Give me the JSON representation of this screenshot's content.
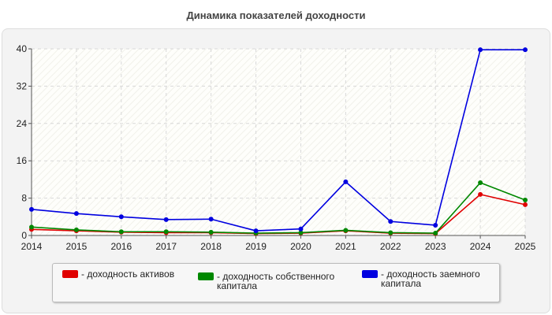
{
  "chart_data": {
    "type": "line",
    "title": "Динамика показателей доходности",
    "x": [
      "2014",
      "2015",
      "2016",
      "2017",
      "2018",
      "2019",
      "2020",
      "2021",
      "2022",
      "2023",
      "2024",
      "2025"
    ],
    "ylim": [
      0,
      40
    ],
    "yticks": [
      "0",
      "8",
      "16",
      "24",
      "32",
      "40"
    ],
    "grid": true,
    "legend_position": "bottom",
    "series": [
      {
        "name": "- доходность активов",
        "color": "#e00000",
        "values": [
          1.3,
          1.0,
          0.7,
          0.6,
          0.6,
          0.4,
          0.5,
          1.0,
          0.5,
          0.4,
          8.8,
          6.6
        ]
      },
      {
        "name": "- доходность собственного\nкапитала",
        "color": "#008800",
        "values": [
          1.8,
          1.2,
          0.8,
          0.8,
          0.7,
          0.5,
          0.6,
          1.1,
          0.6,
          0.5,
          11.3,
          7.6
        ]
      },
      {
        "name": "- доходность заемного\nкапитала",
        "color": "#0000e0",
        "values": [
          5.6,
          4.7,
          4.0,
          3.4,
          3.5,
          1.0,
          1.4,
          11.5,
          3.0,
          2.2,
          39.8,
          39.8
        ]
      }
    ]
  }
}
